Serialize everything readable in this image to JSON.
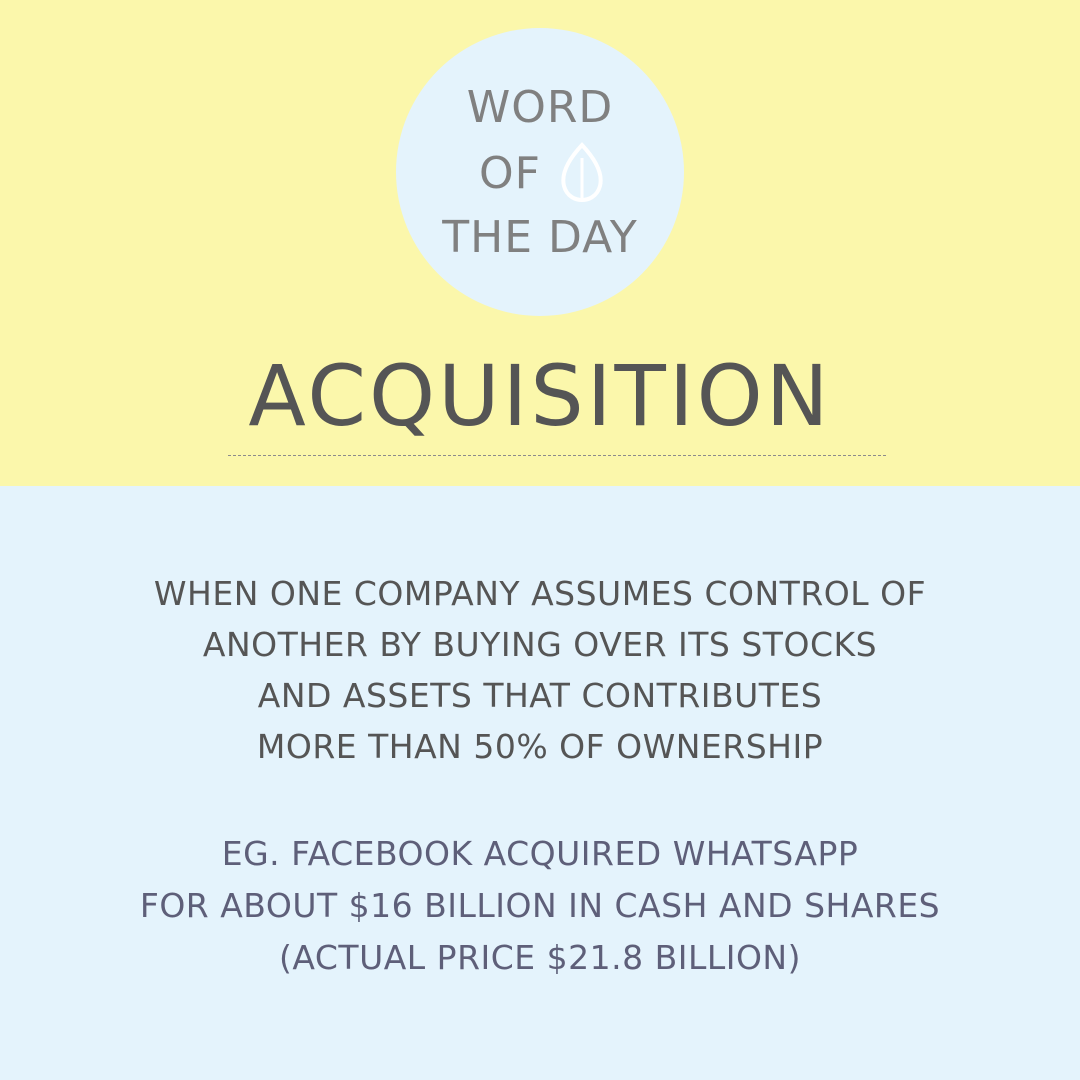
{
  "badge": {
    "line1": "WORD",
    "line2": "OF",
    "line3": "THE DAY",
    "icon": "leaf-icon"
  },
  "title": "ACQUISITION",
  "definition": {
    "lines": [
      "WHEN ONE COMPANY ASSUMES CONTROL OF",
      "ANOTHER BY BUYING OVER ITS STOCKS",
      "AND ASSETS THAT CONTRIBUTES",
      "MORE THAN 50% OF OWNERSHIP"
    ]
  },
  "example": {
    "lines": [
      "EG. FACEBOOK ACQUIRED WHATSAPP",
      "FOR ABOUT $16 BILLION IN CASH AND SHARES",
      "(ACTUAL PRICE $21.8 BILLION)"
    ]
  },
  "colors": {
    "top_background": "#fbf7ab",
    "bottom_background": "#e4f3fc",
    "badge_background": "#e4f3fc",
    "badge_text": "#808080",
    "title_text": "#555555",
    "definition_text": "#555555",
    "example_text": "#5e5f79"
  }
}
